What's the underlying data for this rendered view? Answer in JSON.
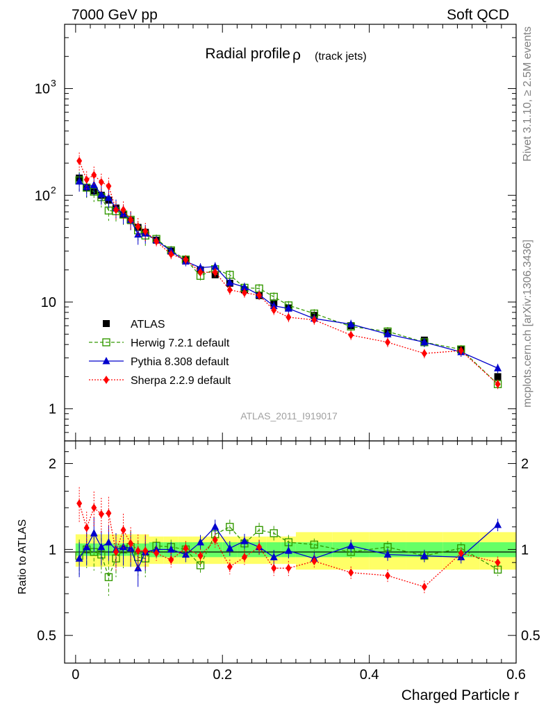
{
  "header": {
    "left": "7000 GeV pp",
    "right": "Soft QCD"
  },
  "side_labels": {
    "rivet": "Rivet 3.1.10, ≥ 2.5M events",
    "mcplots": "mcplots.cern.ch [arXiv:1306.3436]"
  },
  "chart_data": [
    {
      "type": "scatter",
      "panel": "main",
      "title": "Radial profile",
      "title_symbol": "ρ",
      "title_suffix": "(track jets)",
      "watermark": "ATLAS_2011_I919017",
      "yscale": "log",
      "xlim": [
        -0.015,
        0.6
      ],
      "ylim": [
        0.5,
        4000
      ],
      "y_tick_labels": [
        {
          "value": 1,
          "label": "1"
        },
        {
          "value": 10,
          "label": "10"
        },
        {
          "value": 100,
          "label": "10",
          "exp": "2"
        },
        {
          "value": 1000,
          "label": "10",
          "exp": "3"
        }
      ],
      "legend_position": "lower-left",
      "series": [
        {
          "name": "ATLAS",
          "color": "#000000",
          "marker": "square-filled",
          "x": [
            0.005,
            0.015,
            0.025,
            0.035,
            0.045,
            0.055,
            0.065,
            0.075,
            0.085,
            0.095,
            0.11,
            0.13,
            0.15,
            0.17,
            0.19,
            0.21,
            0.23,
            0.25,
            0.27,
            0.29,
            0.325,
            0.375,
            0.425,
            0.475,
            0.525,
            0.575
          ],
          "y": [
            145,
            118,
            110,
            100,
            90,
            76,
            66,
            58,
            50,
            45,
            38,
            30,
            25,
            20,
            18,
            15,
            13,
            11.5,
            9.8,
            8.8,
            7.5,
            6,
            5.2,
            4.4,
            3.6,
            2
          ]
        },
        {
          "name": "Herwig 7.2.1 default",
          "color": "#339900",
          "marker": "square-open",
          "line": "dashed",
          "x": [
            0.005,
            0.015,
            0.025,
            0.035,
            0.045,
            0.055,
            0.065,
            0.075,
            0.085,
            0.095,
            0.11,
            0.13,
            0.15,
            0.17,
            0.19,
            0.21,
            0.23,
            0.25,
            0.27,
            0.29,
            0.325,
            0.375,
            0.425,
            0.475,
            0.525,
            0.575
          ],
          "y": [
            138,
            118,
            108,
            96,
            72,
            71,
            66,
            59,
            47,
            42,
            39,
            30.5,
            25,
            17.6,
            20.3,
            18,
            13.6,
            13.4,
            11.2,
            9.3,
            7.8,
            5.9,
            5.3,
            4.2,
            3.6,
            1.7
          ]
        },
        {
          "name": "Pythia 8.308 default",
          "color": "#0000cc",
          "marker": "triangle",
          "line": "solid",
          "x": [
            0.005,
            0.015,
            0.025,
            0.035,
            0.045,
            0.055,
            0.065,
            0.075,
            0.085,
            0.095,
            0.11,
            0.13,
            0.15,
            0.17,
            0.19,
            0.21,
            0.23,
            0.25,
            0.27,
            0.29,
            0.325,
            0.375,
            0.425,
            0.475,
            0.525,
            0.575
          ],
          "y": [
            135,
            120,
            125,
            102,
            95,
            76,
            67,
            59,
            43,
            44,
            38,
            30,
            24,
            21,
            21.5,
            15.2,
            13.8,
            11.7,
            9.2,
            8.7,
            7,
            6.2,
            5,
            4.2,
            3.4,
            2.4
          ]
        },
        {
          "name": "Sherpa 2.2.9 default",
          "color": "#ff0000",
          "marker": "diamond",
          "line": "dotted",
          "x": [
            0.005,
            0.015,
            0.025,
            0.035,
            0.045,
            0.055,
            0.065,
            0.075,
            0.085,
            0.095,
            0.11,
            0.13,
            0.15,
            0.17,
            0.19,
            0.21,
            0.23,
            0.25,
            0.27,
            0.29,
            0.325,
            0.375,
            0.425,
            0.475,
            0.525,
            0.575
          ],
          "y": [
            210,
            140,
            155,
            133,
            122,
            73,
            73,
            59,
            51,
            46,
            37,
            28,
            25,
            19,
            19,
            13,
            12.2,
            11.6,
            8.4,
            7.2,
            6.8,
            4.9,
            4.2,
            3.3,
            3.5,
            1.7
          ]
        }
      ]
    },
    {
      "type": "scatter",
      "panel": "ratio",
      "ylabel": "Ratio to ATLAS",
      "xlabel": "Charged Particle r",
      "yscale": "log",
      "xlim": [
        -0.015,
        0.6
      ],
      "ylim": [
        0.4,
        2.4
      ],
      "y_tick_labels": [
        {
          "value": 0.5,
          "label": "0.5"
        },
        {
          "value": 1,
          "label": "1"
        },
        {
          "value": 2,
          "label": "2"
        }
      ],
      "x_tick_labels": [
        {
          "value": 0,
          "label": "0"
        },
        {
          "value": 0.2,
          "label": "0.2"
        },
        {
          "value": 0.4,
          "label": "0.4"
        },
        {
          "value": 0.6,
          "label": "0.6"
        }
      ],
      "band_colors": {
        "inner": "#66ff66",
        "outer": "#ffff66"
      },
      "series": [
        {
          "name": "Herwig 7.2.1 default",
          "color": "#339900",
          "x": [
            0.005,
            0.015,
            0.025,
            0.035,
            0.045,
            0.055,
            0.065,
            0.075,
            0.085,
            0.095,
            0.11,
            0.13,
            0.15,
            0.17,
            0.19,
            0.21,
            0.23,
            0.25,
            0.27,
            0.29,
            0.325,
            0.375,
            0.425,
            0.475,
            0.525,
            0.575
          ],
          "y": [
            0.95,
            1,
            0.98,
            0.96,
            0.8,
            0.93,
            1,
            1.02,
            0.94,
            0.93,
            1.03,
            1.02,
            1,
            0.88,
            1.13,
            1.2,
            1.05,
            1.17,
            1.14,
            1.06,
            1.04,
            0.98,
            1.02,
            0.95,
            1.01,
            0.85
          ]
        },
        {
          "name": "Pythia 8.308 default",
          "color": "#0000cc",
          "x": [
            0.005,
            0.015,
            0.025,
            0.035,
            0.045,
            0.055,
            0.065,
            0.075,
            0.085,
            0.095,
            0.11,
            0.13,
            0.15,
            0.17,
            0.19,
            0.21,
            0.23,
            0.25,
            0.27,
            0.29,
            0.325,
            0.375,
            0.425,
            0.475,
            0.525,
            0.575
          ],
          "y": [
            0.93,
            1.02,
            1.14,
            1.02,
            1.06,
            1,
            1.02,
            1.01,
            0.86,
            0.98,
            1,
            1,
            0.96,
            1.06,
            1.2,
            1.01,
            1.07,
            1.02,
            0.94,
            0.99,
            0.93,
            1.03,
            0.96,
            0.95,
            0.94,
            1.22
          ]
        },
        {
          "name": "Sherpa 2.2.9 default",
          "color": "#ff0000",
          "x": [
            0.005,
            0.015,
            0.025,
            0.035,
            0.045,
            0.055,
            0.065,
            0.075,
            0.085,
            0.095,
            0.11,
            0.13,
            0.15,
            0.17,
            0.19,
            0.21,
            0.23,
            0.25,
            0.27,
            0.29,
            0.325,
            0.375,
            0.425,
            0.475,
            0.525,
            0.575
          ],
          "y": [
            1.45,
            1.19,
            1.4,
            1.33,
            1.34,
            0.98,
            1.17,
            1.05,
            0.99,
            0.99,
            0.97,
            0.92,
            1.01,
            0.95,
            1.08,
            0.87,
            0.94,
            1.02,
            0.86,
            0.86,
            0.91,
            0.83,
            0.81,
            0.74,
            0.97,
            0.9
          ]
        }
      ]
    }
  ]
}
